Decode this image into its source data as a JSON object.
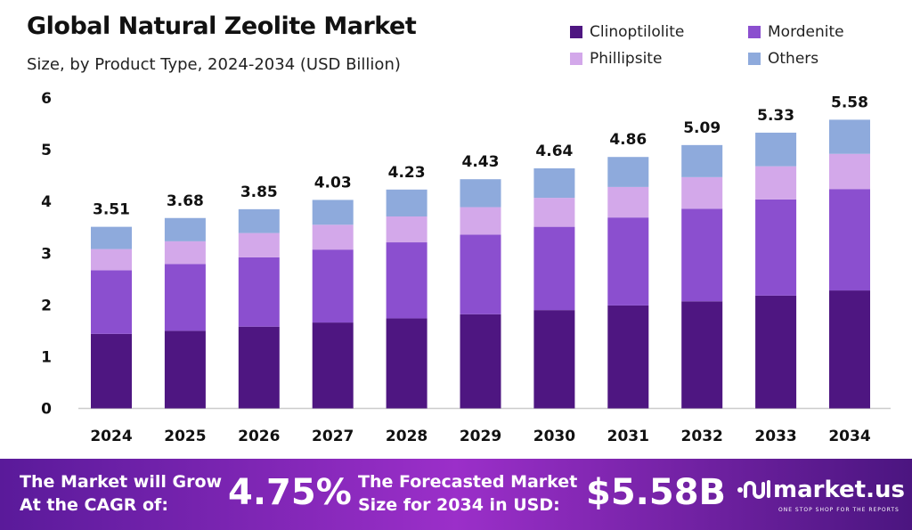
{
  "chart_data": {
    "type": "bar",
    "stacked": true,
    "title": "Global Natural Zeolite Market",
    "subtitle": "Size, by Product Type, 2024-2034 (USD Billion)",
    "xlabel": "",
    "ylabel": "",
    "ylim": [
      0,
      6
    ],
    "yticks": [
      "0",
      "1",
      "2",
      "3",
      "4",
      "5",
      "6"
    ],
    "grid": false,
    "legend_placement": "top-right",
    "categories": [
      "2024",
      "2025",
      "2026",
      "2027",
      "2028",
      "2029",
      "2030",
      "2031",
      "2032",
      "2033",
      "2034"
    ],
    "totals": [
      "3.51",
      "3.68",
      "3.85",
      "4.03",
      "4.23",
      "4.43",
      "4.64",
      "4.86",
      "5.09",
      "5.33",
      "5.58"
    ],
    "series": [
      {
        "name": "Clinoptilolite",
        "color": "#4e1681",
        "values": [
          1.44,
          1.5,
          1.58,
          1.66,
          1.74,
          1.82,
          1.9,
          1.99,
          2.07,
          2.18,
          2.28
        ]
      },
      {
        "name": "Mordenite",
        "color": "#8b4fcf",
        "values": [
          1.23,
          1.29,
          1.34,
          1.41,
          1.47,
          1.54,
          1.61,
          1.7,
          1.79,
          1.86,
          1.96
        ]
      },
      {
        "name": "Phillipsite",
        "color": "#d3a8ea",
        "values": [
          0.41,
          0.44,
          0.47,
          0.48,
          0.5,
          0.53,
          0.56,
          0.59,
          0.61,
          0.64,
          0.68
        ]
      },
      {
        "name": "Others",
        "color": "#8eaadc",
        "values": [
          0.43,
          0.45,
          0.46,
          0.48,
          0.52,
          0.54,
          0.57,
          0.58,
          0.62,
          0.65,
          0.66
        ]
      }
    ]
  },
  "banner": {
    "cagr_label": "The Market will Grow At the CAGR of:",
    "cagr_value": "4.75%",
    "forecast_label": "The Forecasted Market Size for 2034 in USD:",
    "forecast_value": "$5.58B",
    "brand": "market.us",
    "tagline": "ONE STOP SHOP FOR THE REPORTS"
  }
}
